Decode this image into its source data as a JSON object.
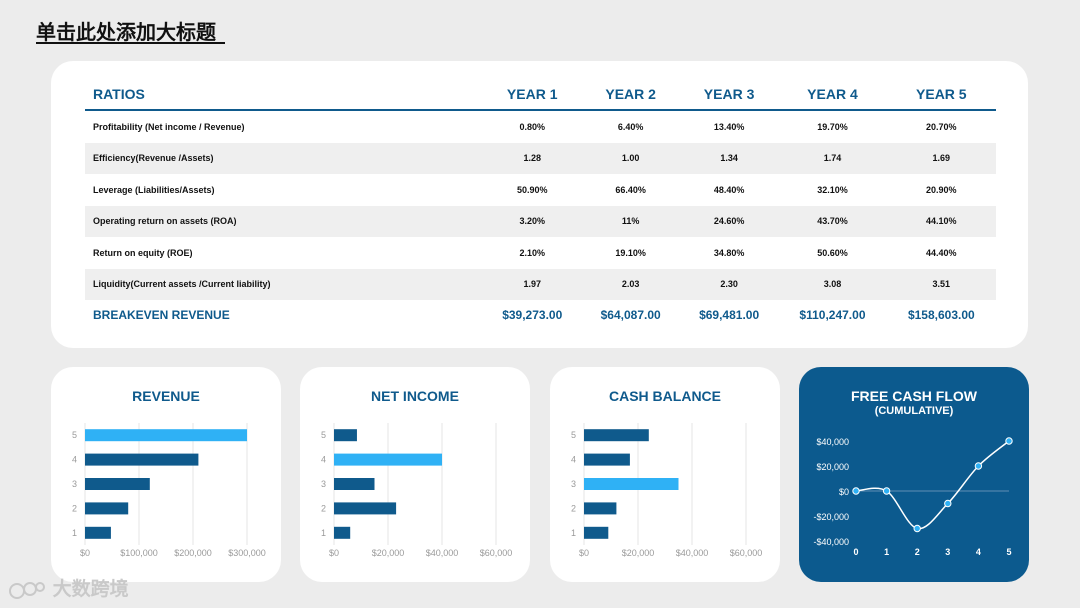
{
  "page": {
    "title": "单击此处添加大标题",
    "watermark": "大数跨境"
  },
  "table": {
    "headers": [
      "RATIOS",
      "YEAR 1",
      "YEAR 2",
      "YEAR 3",
      "YEAR 4",
      "YEAR 5"
    ],
    "rows": [
      {
        "label": "Profitability (Net income / Revenue)",
        "values": [
          "0.80%",
          "6.40%",
          "13.40%",
          "19.70%",
          "20.70%"
        ]
      },
      {
        "label": "Efficiency(Revenue /Assets)",
        "values": [
          "1.28",
          "1.00",
          "1.34",
          "1.74",
          "1.69"
        ]
      },
      {
        "label": "Leverage (Liabilities/Assets)",
        "values": [
          "50.90%",
          "66.40%",
          "48.40%",
          "32.10%",
          "20.90%"
        ]
      },
      {
        "label": "Operating return on assets (ROA)",
        "values": [
          "3.20%",
          "11%",
          "24.60%",
          "43.70%",
          "44.10%"
        ]
      },
      {
        "label": "Return on equity (ROE)",
        "values": [
          "2.10%",
          "19.10%",
          "34.80%",
          "50.60%",
          "44.40%"
        ]
      },
      {
        "label": "Liquidity(Current assets /Current liability)",
        "values": [
          "1.97",
          "2.03",
          "2.30",
          "3.08",
          "3.51"
        ]
      }
    ],
    "breakeven": {
      "label": "BREAKEVEN REVENUE",
      "values": [
        "$39,273.00",
        "$64,087.00",
        "$69,481.00",
        "$110,247.00",
        "$158,603.00"
      ]
    }
  },
  "colors": {
    "primary": "#0f5a8c",
    "highlight": "#2fb1f5",
    "dark_bar": "#0f5a8c",
    "card_dark": "#0c5a8e",
    "axis_text": "#9a9a9a"
  },
  "chart_data": [
    {
      "type": "bar",
      "orientation": "horizontal",
      "title": "REVENUE",
      "categories": [
        "1",
        "2",
        "3",
        "4",
        "5"
      ],
      "values": [
        48000,
        80000,
        120000,
        210000,
        300000
      ],
      "highlight_index": 4,
      "xlim": [
        0,
        300000
      ],
      "xticks": [
        0,
        100000,
        200000,
        300000
      ],
      "xtick_labels": [
        "$0",
        "$100,000",
        "$200,000",
        "$300,000"
      ],
      "grid": true
    },
    {
      "type": "bar",
      "orientation": "horizontal",
      "title": "NET INCOME",
      "categories": [
        "1",
        "2",
        "3",
        "4",
        "5"
      ],
      "values": [
        6000,
        23000,
        15000,
        40000,
        8500
      ],
      "highlight_index": 3,
      "xlim": [
        0,
        60000
      ],
      "xticks": [
        0,
        20000,
        40000,
        60000
      ],
      "xtick_labels": [
        "$0",
        "$20,000",
        "$40,000",
        "$60,000"
      ],
      "grid": true
    },
    {
      "type": "bar",
      "orientation": "horizontal",
      "title": "CASH BALANCE",
      "categories": [
        "1",
        "2",
        "3",
        "4",
        "5"
      ],
      "values": [
        9000,
        12000,
        35000,
        17000,
        24000
      ],
      "highlight_index": 2,
      "xlim": [
        0,
        60000
      ],
      "xticks": [
        0,
        20000,
        40000,
        60000
      ],
      "xtick_labels": [
        "$0",
        "$20,000",
        "$40,000",
        "$60,000"
      ],
      "grid": true
    },
    {
      "type": "line",
      "title": "FREE CASH FLOW",
      "subtitle": "(CUMULATIVE)",
      "smooth": true,
      "x": [
        0,
        1,
        2,
        3,
        4,
        5
      ],
      "y": [
        0,
        0,
        -30000,
        -10000,
        20000,
        40000
      ],
      "xlim": [
        0,
        5
      ],
      "ylim": [
        -40000,
        40000
      ],
      "yticks": [
        40000,
        20000,
        0,
        -20000,
        -40000
      ],
      "ytick_labels": [
        "$40,000",
        "$20,000",
        "$0",
        "-$20,000",
        "-$40,000"
      ],
      "xtick_labels": [
        "0",
        "1",
        "2",
        "3",
        "4",
        "5"
      ]
    }
  ]
}
